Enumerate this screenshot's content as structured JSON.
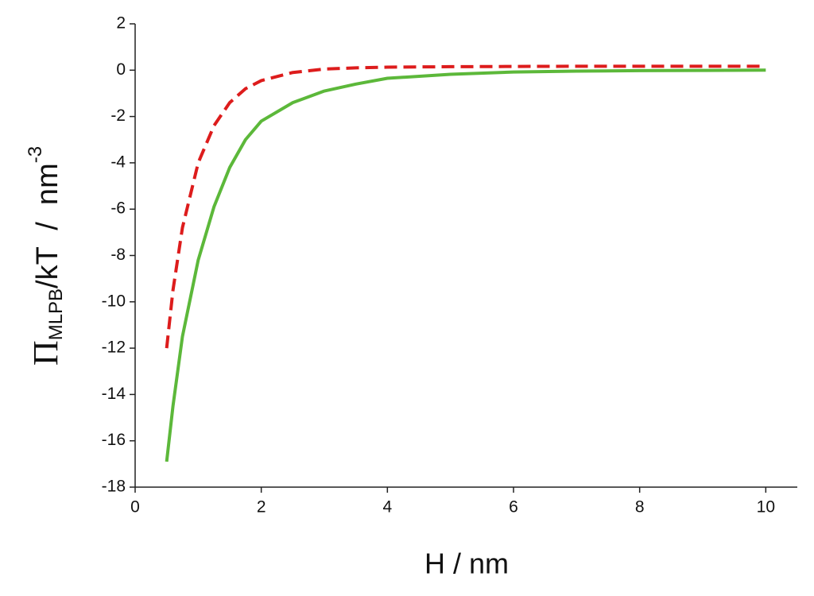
{
  "chart_data": {
    "type": "line",
    "xlabel": "H / nm",
    "ylabel": {
      "main": "Π",
      "sub": "MLPB",
      "mid": "/kT  /  nm",
      "sup": "-3"
    },
    "x": [
      0.5,
      0.6,
      0.75,
      1.0,
      1.25,
      1.5,
      1.75,
      2.0,
      2.5,
      3.0,
      3.5,
      4.0,
      5.0,
      6.0,
      7.0,
      8.0,
      9.0,
      10.0
    ],
    "series": [
      {
        "color": "#dd1c1c",
        "dash": true,
        "values": [
          -12.0,
          -9.5,
          -6.8,
          -4.0,
          -2.4,
          -1.4,
          -0.8,
          -0.45,
          -0.1,
          0.05,
          0.1,
          0.13,
          0.15,
          0.16,
          0.17,
          0.17,
          0.17,
          0.17
        ]
      },
      {
        "color": "#5cb83a",
        "dash": false,
        "values": [
          -16.9,
          -14.5,
          -11.5,
          -8.2,
          -5.9,
          -4.2,
          -3.0,
          -2.2,
          -1.4,
          -0.9,
          -0.6,
          -0.35,
          -0.18,
          -0.08,
          -0.04,
          -0.02,
          -0.01,
          0.0
        ]
      }
    ],
    "xlim": [
      0,
      10.5
    ],
    "xticks": [
      0,
      2,
      4,
      6,
      8,
      10
    ],
    "ylim": [
      -18,
      2
    ],
    "yticks": [
      2,
      0,
      -2,
      -4,
      -6,
      -8,
      -10,
      -12,
      -14,
      -16,
      -18
    ]
  }
}
